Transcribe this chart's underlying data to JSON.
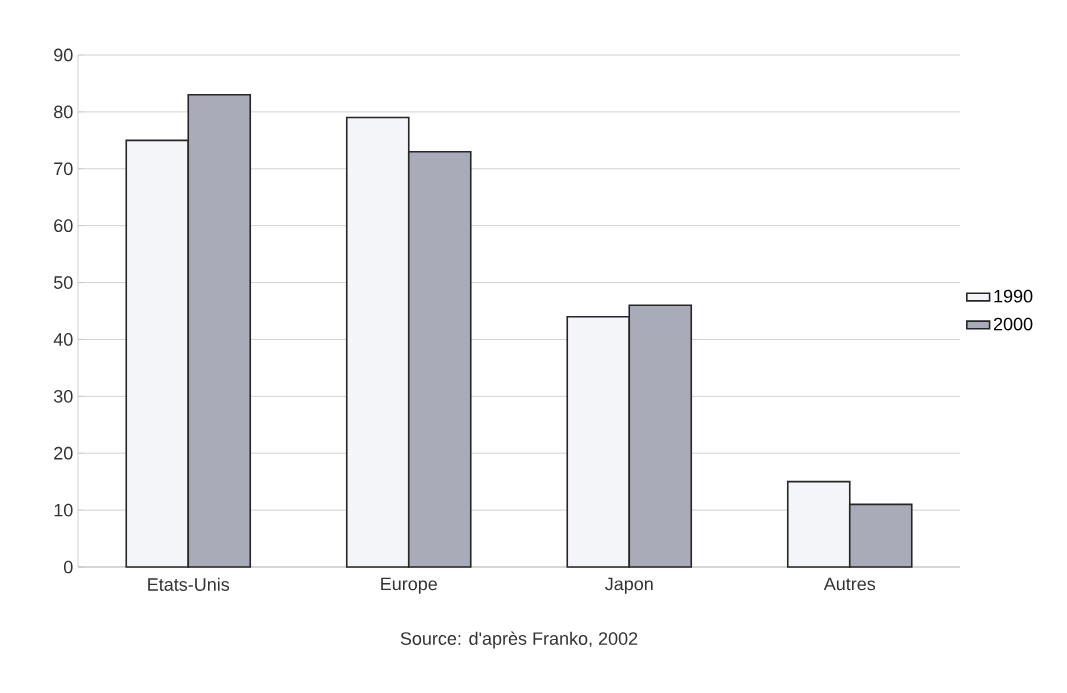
{
  "chart_data": {
    "type": "bar",
    "categories": [
      "Etats-Unis",
      "Europe",
      "Japon",
      "Autres"
    ],
    "series": [
      {
        "name": "1990",
        "color": "#f4f5f9",
        "values": [
          75,
          79,
          44,
          15
        ]
      },
      {
        "name": "2000",
        "color": "#a9abb9",
        "values": [
          83,
          73,
          46,
          11
        ]
      }
    ],
    "ylim": [
      0,
      90
    ],
    "yticks": [
      0,
      10,
      20,
      30,
      40,
      50,
      60,
      70,
      80,
      90
    ],
    "grid": "y",
    "legend": "right",
    "annotations": [
      "Source: d'après Franko, 2002"
    ]
  }
}
